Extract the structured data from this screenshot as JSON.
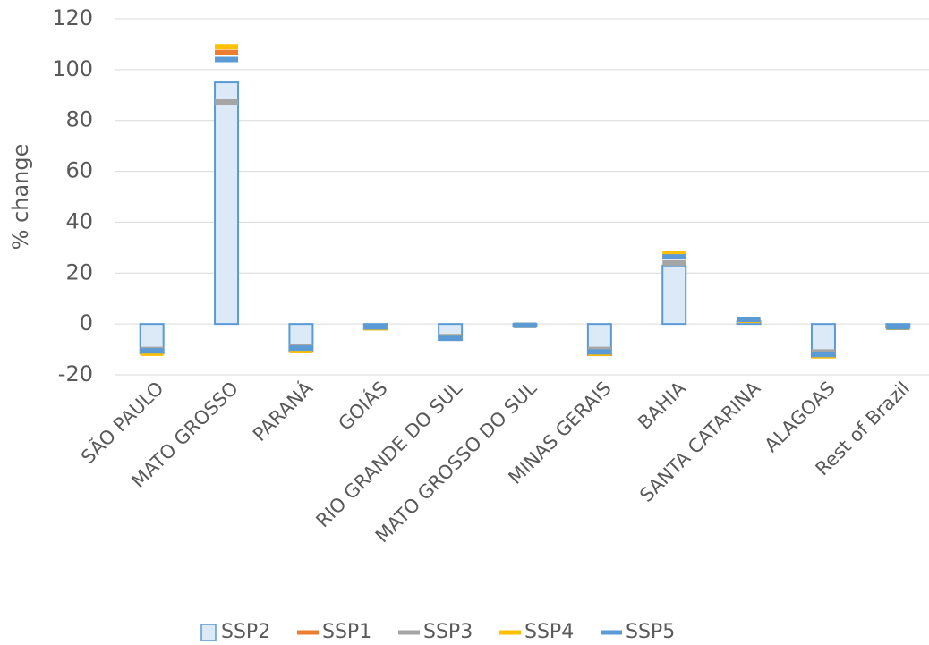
{
  "chart_data": {
    "type": "bar",
    "y_label": "% change",
    "categories": [
      "SÃO PAULO",
      "MATO GROSSO",
      "PARANÁ",
      "GOIÁS",
      "RIO GRANDE DO SUL",
      "MATO GROSSO DO SUL",
      "MINAS GERAIS",
      "BAHIA",
      "SANTA CATARINA",
      "ALAGOAS",
      "Rest of Brazil"
    ],
    "series": [
      {
        "name": "SSP2",
        "type": "bar",
        "color": "#dce9f7",
        "edge_color": "#5b9bd5",
        "values": [
          -11.6,
          95,
          -10.9,
          -2,
          -6.3,
          -1,
          -12.3,
          23,
          1,
          -13,
          -1.5
        ]
      },
      {
        "name": "SSP1",
        "type": "dash",
        "color": "#ed7d31",
        "values": [
          -11,
          106.7,
          -10,
          -1.5,
          -5,
          -0.5,
          -11.5,
          26.8,
          1.5,
          -12.5,
          -1.3
        ]
      },
      {
        "name": "SSP3",
        "type": "dash",
        "color": "#a5a5a5",
        "values": [
          -10,
          87.3,
          -9,
          -1.5,
          -5,
          -0.5,
          -10,
          24,
          1.5,
          -11,
          -1.3
        ]
      },
      {
        "name": "SSP4",
        "type": "dash",
        "color": "#ffc000",
        "values": [
          -11.5,
          109,
          -10.5,
          -1.5,
          -5.5,
          -0.5,
          -11.5,
          27.5,
          1.5,
          -12.5,
          -1.3
        ]
      },
      {
        "name": "SSP5",
        "type": "dash",
        "color": "#5b9bd5",
        "values": [
          -10.6,
          104,
          -9.5,
          -1.2,
          -5.6,
          -0.5,
          -11,
          26.4,
          1.8,
          -12,
          -1.2
        ]
      }
    ],
    "ylim": [
      -20,
      120
    ],
    "yticks": [
      -20,
      0,
      20,
      40,
      60,
      80,
      100,
      120
    ],
    "grid": true,
    "legend": "bottom"
  }
}
